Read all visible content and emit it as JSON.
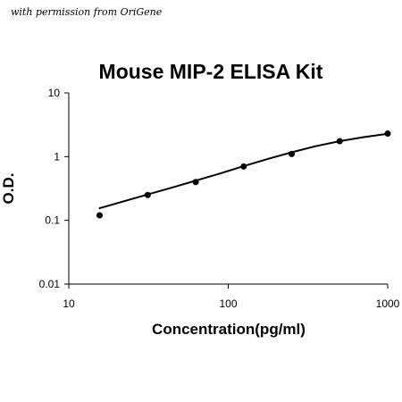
{
  "header": {
    "credit": "with permission from OriGene"
  },
  "chart_data": {
    "type": "scatter",
    "title": "Mouse MIP-2 ELISA Kit",
    "xlabel": "Concentration(pg/ml)",
    "ylabel": "O.D.",
    "xscale": "log",
    "yscale": "log",
    "xlim": [
      10,
      1000
    ],
    "ylim": [
      0.01,
      10
    ],
    "xticks": [
      10,
      100,
      1000
    ],
    "xtick_labels": [
      "10",
      "100",
      "1000"
    ],
    "yticks": [
      0.01,
      0.1,
      1,
      10
    ],
    "ytick_labels": [
      "0.01",
      "0.1",
      "1",
      "10"
    ],
    "grid": false,
    "points": {
      "x": [
        15.6,
        31.25,
        62.5,
        125,
        250,
        500,
        1000
      ],
      "y": [
        0.12,
        0.25,
        0.4,
        0.7,
        1.1,
        1.75,
        2.3
      ]
    },
    "fit_curve": {
      "x": [
        15.6,
        20,
        31.25,
        45,
        62.5,
        90,
        125,
        180,
        250,
        350,
        500,
        700,
        1000
      ],
      "y": [
        0.155,
        0.185,
        0.255,
        0.33,
        0.42,
        0.55,
        0.71,
        0.93,
        1.17,
        1.45,
        1.75,
        2.02,
        2.28
      ]
    },
    "colors": {
      "points": "#000000",
      "curve": "#000000",
      "axes": "#000000"
    }
  }
}
